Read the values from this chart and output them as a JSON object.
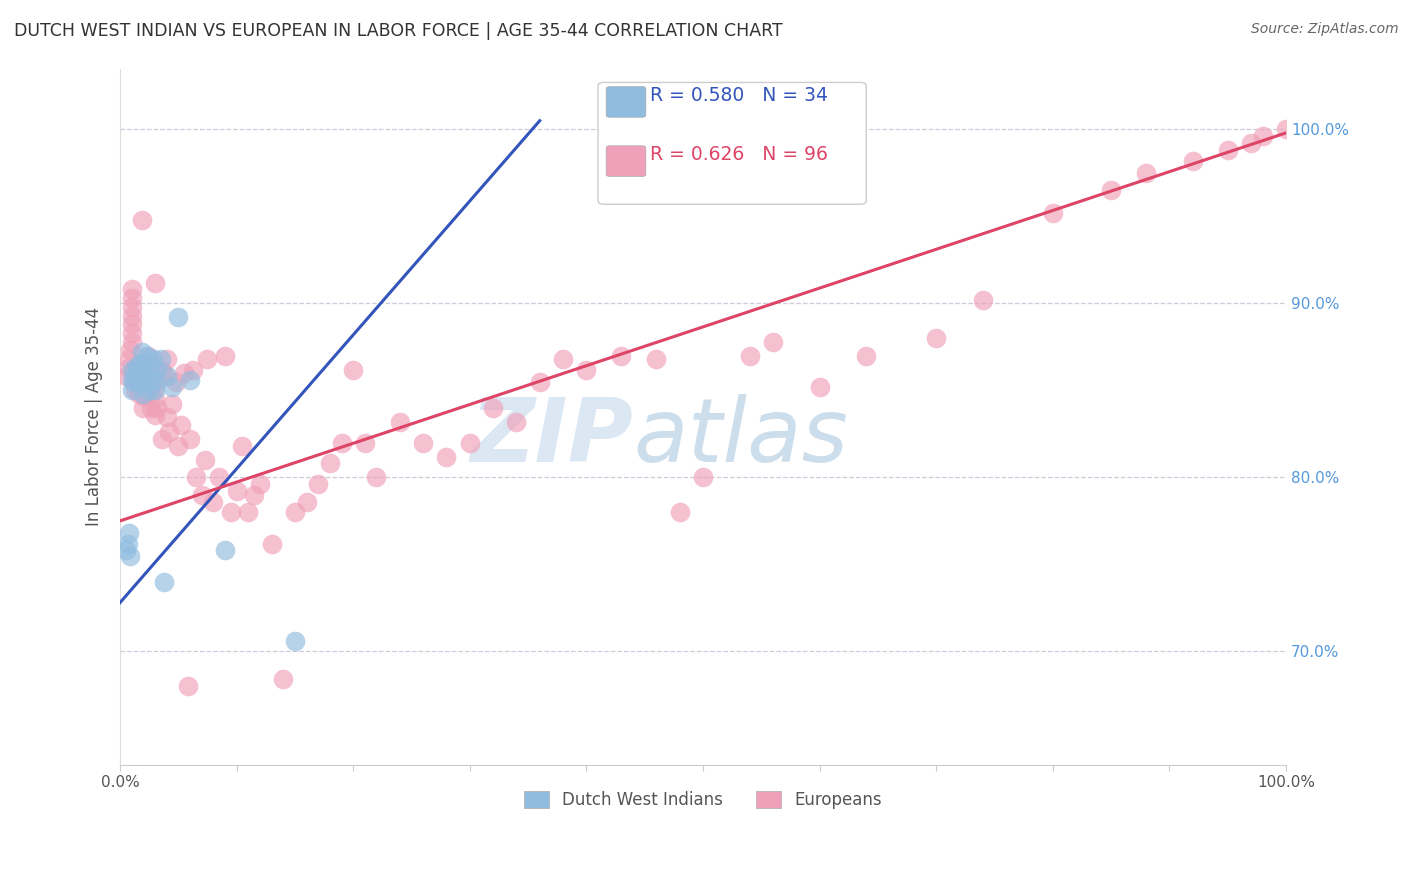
{
  "title": "DUTCH WEST INDIAN VS EUROPEAN IN LABOR FORCE | AGE 35-44 CORRELATION CHART",
  "source": "Source: ZipAtlas.com",
  "watermark_zip": "ZIP",
  "watermark_atlas": "atlas",
  "blue_color": "#90bce0",
  "pink_color": "#f0a0b8",
  "blue_line_color": "#3355bb",
  "pink_line_color": "#dd4466",
  "grid_color": "#ccccdd",
  "ylabel_color": "#5599dd",
  "xtick_color": "#555555",
  "xlim": [
    0.0,
    1.0
  ],
  "ylim": [
    0.635,
    1.035
  ],
  "ytick_positions": [
    0.7,
    0.8,
    0.9,
    1.0
  ],
  "ytick_labels": [
    "70.0%",
    "80.0%",
    "90.0%",
    "100.0%"
  ],
  "legend_r_blue": "0.580",
  "legend_n_blue": "34",
  "legend_r_pink": "0.626",
  "legend_n_pink": "96",
  "blue_line_x0": 0.0,
  "blue_line_x1": 0.36,
  "blue_line_y0": 0.728,
  "blue_line_y1": 1.005,
  "pink_line_x0": 0.0,
  "pink_line_x1": 1.0,
  "pink_line_y0": 0.775,
  "pink_line_y1": 0.998,
  "blue_x": [
    0.005,
    0.007,
    0.008,
    0.009,
    0.01,
    0.01,
    0.01,
    0.012,
    0.013,
    0.015,
    0.015,
    0.017,
    0.018,
    0.019,
    0.02,
    0.02,
    0.021,
    0.022,
    0.023,
    0.025,
    0.025,
    0.026,
    0.028,
    0.03,
    0.03,
    0.032,
    0.035,
    0.038,
    0.04,
    0.045,
    0.05,
    0.06,
    0.09,
    0.15
  ],
  "blue_y": [
    0.758,
    0.762,
    0.768,
    0.755,
    0.85,
    0.856,
    0.862,
    0.855,
    0.86,
    0.858,
    0.864,
    0.86,
    0.866,
    0.872,
    0.848,
    0.854,
    0.86,
    0.866,
    0.87,
    0.85,
    0.856,
    0.862,
    0.868,
    0.85,
    0.856,
    0.862,
    0.868,
    0.74,
    0.858,
    0.852,
    0.892,
    0.856,
    0.758,
    0.706
  ],
  "pink_x": [
    0.005,
    0.007,
    0.008,
    0.009,
    0.01,
    0.01,
    0.01,
    0.01,
    0.01,
    0.01,
    0.01,
    0.012,
    0.013,
    0.015,
    0.015,
    0.016,
    0.017,
    0.018,
    0.019,
    0.02,
    0.021,
    0.022,
    0.023,
    0.024,
    0.025,
    0.027,
    0.028,
    0.03,
    0.03,
    0.03,
    0.032,
    0.033,
    0.035,
    0.036,
    0.038,
    0.04,
    0.04,
    0.042,
    0.045,
    0.048,
    0.05,
    0.052,
    0.055,
    0.058,
    0.06,
    0.063,
    0.065,
    0.07,
    0.073,
    0.075,
    0.08,
    0.085,
    0.09,
    0.095,
    0.1,
    0.105,
    0.11,
    0.115,
    0.12,
    0.13,
    0.14,
    0.15,
    0.16,
    0.17,
    0.18,
    0.19,
    0.2,
    0.21,
    0.22,
    0.24,
    0.26,
    0.28,
    0.3,
    0.32,
    0.34,
    0.36,
    0.38,
    0.4,
    0.43,
    0.46,
    0.48,
    0.5,
    0.54,
    0.56,
    0.6,
    0.64,
    0.7,
    0.74,
    0.8,
    0.85,
    0.88,
    0.92,
    0.95,
    0.97,
    0.98,
    1.0
  ],
  "pink_y": [
    0.858,
    0.863,
    0.868,
    0.873,
    0.878,
    0.883,
    0.888,
    0.893,
    0.898,
    0.903,
    0.908,
    0.862,
    0.85,
    0.856,
    0.862,
    0.848,
    0.853,
    0.858,
    0.948,
    0.84,
    0.846,
    0.858,
    0.864,
    0.87,
    0.86,
    0.84,
    0.85,
    0.836,
    0.845,
    0.912,
    0.84,
    0.856,
    0.862,
    0.822,
    0.86,
    0.835,
    0.868,
    0.826,
    0.842,
    0.855,
    0.818,
    0.83,
    0.86,
    0.68,
    0.822,
    0.862,
    0.8,
    0.79,
    0.81,
    0.868,
    0.786,
    0.8,
    0.87,
    0.78,
    0.792,
    0.818,
    0.78,
    0.79,
    0.796,
    0.762,
    0.684,
    0.78,
    0.786,
    0.796,
    0.808,
    0.82,
    0.862,
    0.82,
    0.8,
    0.832,
    0.82,
    0.812,
    0.82,
    0.84,
    0.832,
    0.855,
    0.868,
    0.862,
    0.87,
    0.868,
    0.78,
    0.8,
    0.87,
    0.878,
    0.852,
    0.87,
    0.88,
    0.902,
    0.952,
    0.965,
    0.975,
    0.982,
    0.988,
    0.992,
    0.996,
    1.0
  ]
}
